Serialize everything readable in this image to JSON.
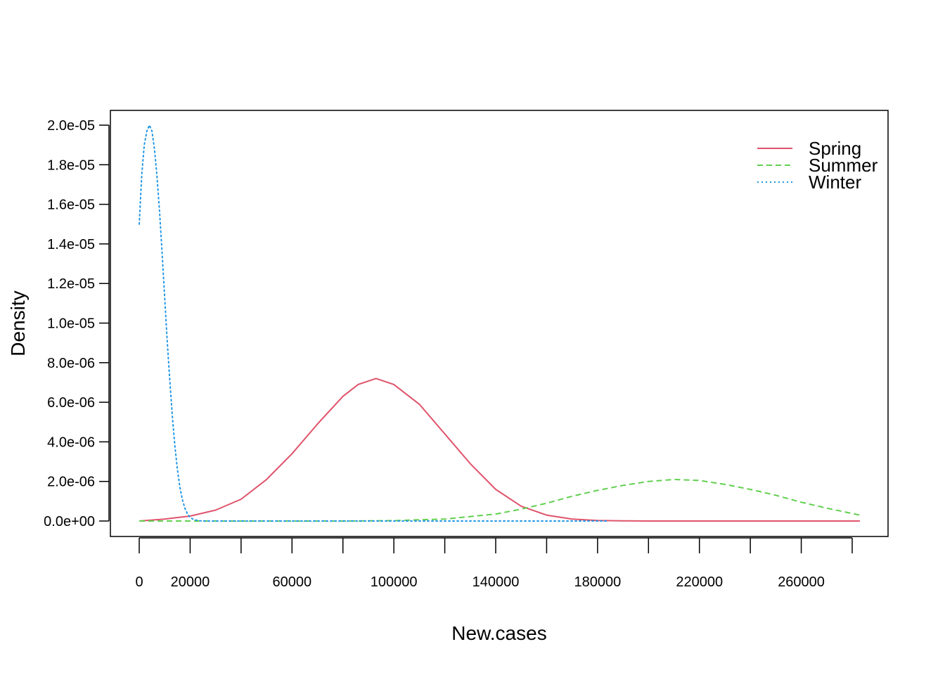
{
  "chart_data": {
    "type": "line",
    "title": "",
    "xlabel": "New.cases",
    "ylabel": "Density",
    "xlim": [
      -5000,
      290000
    ],
    "ylim": [
      0,
      2e-05
    ],
    "x_ticks": [
      0,
      20000,
      40000,
      60000,
      80000,
      100000,
      120000,
      140000,
      160000,
      180000,
      200000,
      220000,
      240000,
      260000,
      280000
    ],
    "x_tick_labels": [
      {
        "value": 0,
        "label": "0"
      },
      {
        "value": 20000,
        "label": "20000"
      },
      {
        "value": 60000,
        "label": "60000"
      },
      {
        "value": 100000,
        "label": "100000"
      },
      {
        "value": 140000,
        "label": "140000"
      },
      {
        "value": 180000,
        "label": "180000"
      },
      {
        "value": 220000,
        "label": "220000"
      },
      {
        "value": 260000,
        "label": "260000"
      }
    ],
    "y_ticks": [
      {
        "value": 0,
        "label": "0.0e+00"
      },
      {
        "value": 2e-06,
        "label": "2.0e-06"
      },
      {
        "value": 4e-06,
        "label": "4.0e-06"
      },
      {
        "value": 6e-06,
        "label": "6.0e-06"
      },
      {
        "value": 8e-06,
        "label": "8.0e-06"
      },
      {
        "value": 1e-05,
        "label": "1.0e-05"
      },
      {
        "value": 1.2e-05,
        "label": "1.2e-05"
      },
      {
        "value": 1.4e-05,
        "label": "1.4e-05"
      },
      {
        "value": 1.6e-05,
        "label": "1.6e-05"
      },
      {
        "value": 1.8e-05,
        "label": "1.8e-05"
      },
      {
        "value": 2e-05,
        "label": "2.0e-05"
      }
    ],
    "grid": false,
    "legend_position": "top-right",
    "series": [
      {
        "name": "Spring",
        "color": "#DF536B",
        "dash": "solid",
        "x": [
          0,
          10000,
          20000,
          30000,
          40000,
          50000,
          60000,
          70000,
          80000,
          86000,
          93000,
          100000,
          110000,
          120000,
          130000,
          140000,
          150000,
          160000,
          170000,
          180000,
          190000,
          200000,
          220000,
          240000,
          260000,
          283000
        ],
        "y": [
          0,
          1e-07,
          2.5e-07,
          5.5e-07,
          1.1e-06,
          2.1e-06,
          3.4e-06,
          4.9e-06,
          6.3e-06,
          6.9e-06,
          7.2e-06,
          6.9e-06,
          5.9e-06,
          4.4e-06,
          2.9e-06,
          1.6e-06,
          7.5e-07,
          3e-07,
          1e-07,
          3e-08,
          1e-08,
          0,
          0,
          0,
          0,
          0
        ]
      },
      {
        "name": "Summer",
        "color": "#61D04F",
        "dash": "dashed",
        "x": [
          0,
          40000,
          80000,
          100000,
          120000,
          140000,
          150000,
          160000,
          170000,
          180000,
          190000,
          200000,
          210000,
          220000,
          230000,
          240000,
          250000,
          260000,
          270000,
          283000
        ],
        "y": [
          0,
          0,
          0,
          2e-08,
          1e-07,
          3.5e-07,
          6e-07,
          9e-07,
          1.25e-06,
          1.55e-06,
          1.8e-06,
          2e-06,
          2.1e-06,
          2.05e-06,
          1.85e-06,
          1.6e-06,
          1.3e-06,
          9.5e-07,
          6.5e-07,
          3e-07
        ]
      },
      {
        "name": "Winter",
        "color": "#2297E6",
        "dash": "dotted",
        "x": [
          0,
          1000,
          2000,
          3000,
          4000,
          5000,
          6000,
          7000,
          8000,
          9000,
          10000,
          11000,
          12000,
          13000,
          14000,
          15000,
          16000,
          17000,
          18000,
          19000,
          20000,
          21000,
          22000,
          24000,
          26000,
          30000,
          40000,
          80000,
          120000,
          160000,
          184000
        ],
        "y": [
          1.5e-05,
          1.75e-05,
          1.9e-05,
          1.97e-05,
          2e-05,
          1.97e-05,
          1.88e-05,
          1.74e-05,
          1.56e-05,
          1.35e-05,
          1.13e-05,
          9.1e-06,
          7.1e-06,
          5.3e-06,
          3.8e-06,
          2.6e-06,
          1.7e-06,
          1.05e-06,
          6.2e-07,
          3.5e-07,
          1.9e-07,
          1e-07,
          5e-08,
          1e-08,
          0,
          0,
          0,
          0,
          0,
          0,
          0
        ]
      }
    ]
  }
}
